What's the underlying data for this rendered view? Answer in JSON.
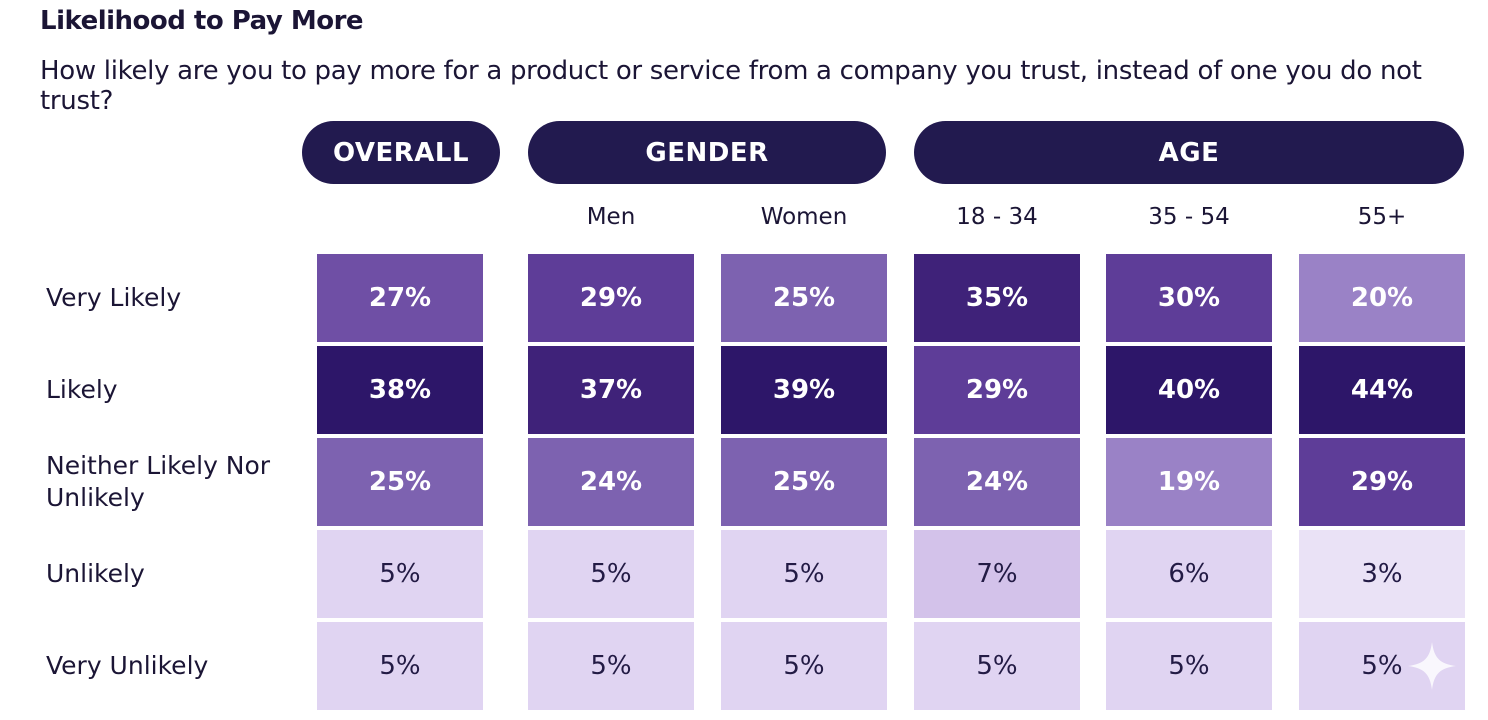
{
  "header": {
    "title": "Likelihood to Pay More",
    "subtitle": "How likely are you to pay more for a product or service from a company you trust, instead of one you do not trust?"
  },
  "groups": [
    {
      "label": "OVERALL"
    },
    {
      "label": "GENDER"
    },
    {
      "label": "AGE"
    }
  ],
  "colors": {
    "pill": "#221a4f",
    "scale": [
      "#eae2f6",
      "#d9cbee",
      "#9a82c6",
      "#7b5cae",
      "#5e3d98",
      "#2d1669"
    ]
  },
  "chart_data": {
    "type": "heatmap",
    "title": "Likelihood to Pay More",
    "subtitle": "How likely are you to pay more for a product or service from a company you trust, instead of one you do not trust?",
    "unit": "%",
    "column_groups": [
      {
        "name": "OVERALL",
        "columns": [
          "Overall"
        ]
      },
      {
        "name": "GENDER",
        "columns": [
          "Men",
          "Women"
        ]
      },
      {
        "name": "AGE",
        "columns": [
          "18 - 34",
          "35 - 54",
          "55+"
        ]
      }
    ],
    "columns": [
      "Overall",
      "Men",
      "Women",
      "18 - 34",
      "35 - 54",
      "55+"
    ],
    "column_labels": [
      "",
      "Men",
      "Women",
      "18 - 34",
      "35 - 54",
      "55+"
    ],
    "rows": [
      "Very Likely",
      "Likely",
      "Neither Likely Nor Unlikely",
      "Unlikely",
      "Very Unlikely"
    ],
    "values": [
      [
        27,
        29,
        25,
        35,
        30,
        20
      ],
      [
        38,
        37,
        39,
        29,
        40,
        44
      ],
      [
        25,
        24,
        25,
        24,
        19,
        29
      ],
      [
        5,
        5,
        5,
        7,
        6,
        3
      ],
      [
        5,
        5,
        5,
        5,
        5,
        5
      ]
    ],
    "labels": [
      [
        "27%",
        "29%",
        "25%",
        "35%",
        "30%",
        "20%"
      ],
      [
        "38%",
        "37%",
        "39%",
        "29%",
        "40%",
        "44%"
      ],
      [
        "25%",
        "24%",
        "25%",
        "24%",
        "19%",
        "29%"
      ],
      [
        "5%",
        "5%",
        "5%",
        "7%",
        "6%",
        "3%"
      ],
      [
        "5%",
        "5%",
        "5%",
        "5%",
        "5%",
        "5%"
      ]
    ]
  },
  "decorations": {
    "sparkle_icon": "four-point-star"
  }
}
